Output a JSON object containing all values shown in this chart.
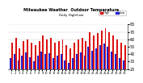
{
  "title": "Milwaukee Weather  Outdoor Temperature",
  "subtitle": "Daily High/Low",
  "highs": [
    55,
    62,
    48,
    58,
    60,
    55,
    52,
    58,
    65,
    60,
    62,
    55,
    58,
    60,
    52,
    48,
    55,
    60,
    62,
    58,
    70,
    65,
    68,
    72,
    75,
    70,
    65,
    60,
    55,
    52
  ],
  "lows": [
    35,
    40,
    32,
    38,
    42,
    36,
    30,
    38,
    44,
    40,
    41,
    35,
    38,
    40,
    32,
    28,
    35,
    40,
    42,
    38,
    50,
    45,
    48,
    52,
    54,
    50,
    44,
    40,
    35,
    32
  ],
  "high_color": "#dd1111",
  "low_color": "#2222cc",
  "highlight_index": 24,
  "bg_color": "#ffffff",
  "plot_bg": "#ffffff",
  "ylim_min": 20,
  "ylim_max": 80,
  "yticks": [
    20,
    30,
    40,
    50,
    60,
    70,
    80
  ],
  "bar_width": 0.4,
  "legend_high": "High",
  "legend_low": "Low"
}
